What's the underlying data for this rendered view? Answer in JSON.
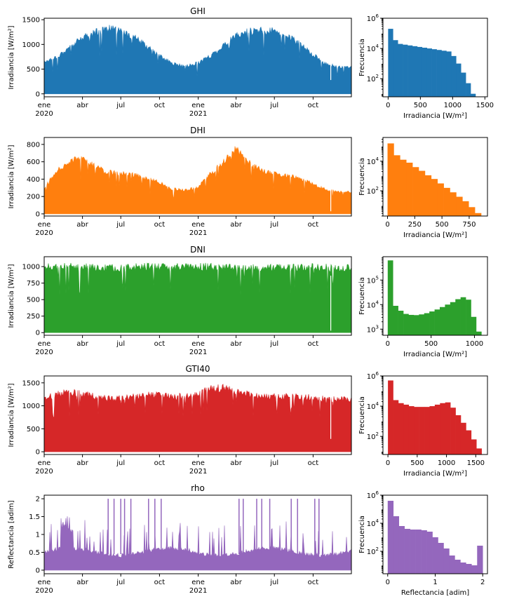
{
  "chart_data": [
    {
      "type": "area",
      "title": "GHI",
      "ylabel": "Irradiancia [W/m²]",
      "color": "#1f77b4",
      "ylim": [
        -60,
        1530
      ],
      "yticks": [
        0,
        500,
        1000,
        1500
      ],
      "x_range": [
        "2020-01-01",
        "2021-12-31"
      ],
      "xtick_labels": [
        "ene\n2020",
        "abr",
        "jul",
        "oct",
        "ene\n2021",
        "abr",
        "jul",
        "oct"
      ],
      "monthly_peak_envelope": [
        680,
        780,
        980,
        1180,
        1300,
        1380,
        1320,
        1200,
        1000,
        800,
        640,
        570,
        650,
        800,
        1020,
        1220,
        1320,
        1330,
        1320,
        1220,
        1050,
        820,
        630,
        560
      ],
      "notable_dip": {
        "date": "2021-11-12",
        "value": 280
      }
    },
    {
      "type": "bar",
      "ylabel": "Frecuencia",
      "xlabel": "Irradiancia [W/m²]",
      "color": "#1f77b4",
      "yscale": "log",
      "ylim_exp": [
        0.8,
        6
      ],
      "yticks_exp": [
        2,
        4,
        6
      ],
      "xlim": [
        -80,
        1540
      ],
      "xticks": [
        0,
        500,
        1000,
        1500
      ],
      "bins": [
        0,
        1430
      ],
      "freq_exp": [
        5.3,
        4.55,
        4.3,
        4.25,
        4.2,
        4.15,
        4.1,
        4.05,
        4.0,
        3.95,
        3.9,
        3.85,
        3.8,
        3.5,
        3.0,
        2.4,
        1.7,
        1.0,
        0.4
      ]
    },
    {
      "type": "area",
      "title": "DHI",
      "ylabel": "Irradiancia [W/m²]",
      "color": "#ff7f0e",
      "ylim": [
        -25,
        880
      ],
      "yticks": [
        0,
        200,
        400,
        600,
        800
      ],
      "x_range": [
        "2020-01-01",
        "2021-12-31"
      ],
      "xtick_labels": [
        "ene\n2020",
        "abr",
        "jul",
        "oct",
        "ene\n2021",
        "abr",
        "jul",
        "oct"
      ],
      "monthly_peak_envelope": [
        300,
        520,
        620,
        700,
        560,
        500,
        480,
        470,
        420,
        380,
        300,
        280,
        320,
        480,
        620,
        780,
        620,
        520,
        480,
        460,
        420,
        360,
        290,
        260
      ],
      "notable_dip": {
        "date": "2021-11-12",
        "value": 30
      }
    },
    {
      "type": "bar",
      "ylabel": "Frecuencia",
      "xlabel": "Irradiancia [W/m²]",
      "color": "#ff7f0e",
      "yscale": "log",
      "ylim_exp": [
        0.3,
        5.6
      ],
      "yticks_exp": [
        2,
        4
      ],
      "xlim": [
        -42,
        918
      ],
      "xticks": [
        0,
        250,
        500,
        750
      ],
      "bins": [
        0,
        860
      ],
      "freq_exp": [
        5.2,
        4.4,
        4.1,
        3.9,
        3.6,
        3.35,
        3.05,
        2.8,
        2.5,
        2.2,
        1.9,
        1.6,
        1.3,
        0.9,
        0.5
      ]
    },
    {
      "type": "area",
      "title": "DNI",
      "ylabel": "Irradiancia [W/m²]",
      "color": "#2ca02c",
      "ylim": [
        -40,
        1150
      ],
      "yticks": [
        0,
        250,
        500,
        750,
        1000
      ],
      "x_range": [
        "2020-01-01",
        "2021-12-31"
      ],
      "xtick_labels": [
        "ene\n2020",
        "abr",
        "jul",
        "oct",
        "ene\n2021",
        "abr",
        "jul",
        "oct"
      ],
      "monthly_peak_envelope": [
        1030,
        1040,
        1040,
        1030,
        1020,
        1010,
        1020,
        1030,
        1040,
        1030,
        1030,
        1030,
        1040,
        1040,
        1040,
        1030,
        1020,
        1020,
        1020,
        1030,
        1030,
        1040,
        1030,
        1020
      ],
      "notable_dip": {
        "date": "2021-11-12",
        "value": 30
      }
    },
    {
      "type": "bar",
      "ylabel": "Frecuencia",
      "xlabel": "Irradiancia [W/m²]",
      "color": "#2ca02c",
      "yscale": "log",
      "ylim_exp": [
        2.75,
        5.95
      ],
      "yticks_exp": [
        3,
        4,
        5
      ],
      "xlim": [
        -55,
        1150
      ],
      "xticks": [
        0,
        500,
        1000
      ],
      "bins": [
        0,
        1080
      ],
      "freq_exp": [
        5.8,
        3.95,
        3.75,
        3.62,
        3.58,
        3.57,
        3.6,
        3.65,
        3.72,
        3.8,
        3.9,
        4.0,
        4.1,
        4.22,
        4.3,
        4.2,
        3.5,
        2.9
      ]
    },
    {
      "type": "area",
      "title": "GTI40",
      "ylabel": "Irradiancia [W/m²]",
      "color": "#d62728",
      "ylim": [
        -60,
        1650
      ],
      "yticks": [
        0,
        500,
        1000,
        1500
      ],
      "x_range": [
        "2020-01-01",
        "2021-12-31"
      ],
      "xtick_labels": [
        "ene\n2020",
        "abr",
        "jul",
        "oct",
        "ene\n2021",
        "abr",
        "jul",
        "oct"
      ],
      "monthly_peak_envelope": [
        1200,
        1300,
        1350,
        1300,
        1250,
        1200,
        1220,
        1250,
        1300,
        1280,
        1250,
        1250,
        1300,
        1420,
        1450,
        1350,
        1300,
        1250,
        1250,
        1250,
        1250,
        1220,
        1200,
        1180
      ],
      "notable_dip": {
        "date": "2021-11-12",
        "value": 280
      }
    },
    {
      "type": "bar",
      "ylabel": "Frecuencia",
      "xlabel": "Irradiancia [W/m²]",
      "color": "#d62728",
      "yscale": "log",
      "ylim_exp": [
        0.8,
        6
      ],
      "yticks_exp": [
        2,
        4,
        6
      ],
      "xlim": [
        -85,
        1700
      ],
      "xticks": [
        0,
        500,
        1000,
        1500
      ],
      "bins": [
        0,
        1600
      ],
      "freq_exp": [
        5.7,
        4.4,
        4.2,
        4.1,
        4.0,
        3.95,
        3.95,
        3.95,
        4.0,
        4.1,
        4.2,
        4.25,
        3.9,
        3.4,
        2.9,
        2.4,
        1.8,
        1.2
      ]
    },
    {
      "type": "area",
      "title": "rho",
      "ylabel": "Reflectancia [adim]",
      "color": "#9467bd",
      "ylim": [
        -0.1,
        2.1
      ],
      "yticks": [
        0.0,
        0.5,
        1.0,
        1.5,
        2.0
      ],
      "x_range": [
        "2020-01-01",
        "2021-12-31"
      ],
      "xtick_labels": [
        "ene\n2020",
        "abr",
        "jul",
        "oct",
        "ene\n2021",
        "abr",
        "jul",
        "oct"
      ],
      "baseline_level": 0.45,
      "spike_dates": [
        "2020-06-01",
        "2020-06-15",
        "2020-07-01",
        "2020-07-10",
        "2020-07-25",
        "2020-09-05",
        "2020-09-20",
        "2020-10-05",
        "2021-04-08",
        "2021-04-18",
        "2021-05-20",
        "2021-06-01",
        "2021-06-20",
        "2021-08-10",
        "2021-08-25",
        "2021-10-05",
        "2021-10-15"
      ],
      "spike_value": 2.0
    },
    {
      "type": "bar",
      "ylabel": "Frecuencia",
      "xlabel": "Reflectancia [adim]",
      "color": "#9467bd",
      "yscale": "log",
      "ylim_exp": [
        0.4,
        6
      ],
      "yticks_exp": [
        2,
        4,
        6
      ],
      "xlim": [
        -0.1,
        2.1
      ],
      "xticks": [
        0,
        1,
        2
      ],
      "bins": [
        0,
        2.0
      ],
      "freq_exp": [
        5.6,
        4.5,
        3.8,
        3.6,
        3.55,
        3.55,
        3.5,
        3.4,
        3.0,
        2.6,
        2.2,
        1.7,
        1.4,
        1.2,
        1.1,
        1.0,
        2.4
      ]
    }
  ]
}
